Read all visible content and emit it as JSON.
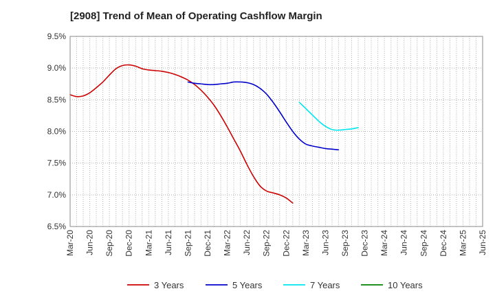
{
  "chart_data": {
    "type": "line",
    "title": "[2908]  Trend of Mean of Operating Cashflow Margin",
    "xlabel": "",
    "ylabel": "",
    "ylim": [
      6.5,
      9.5
    ],
    "y_ticks": [
      "9.5%",
      "9.0%",
      "8.5%",
      "8.0%",
      "7.5%",
      "7.0%",
      "6.5%"
    ],
    "y_tick_values": [
      9.5,
      9.0,
      8.5,
      8.0,
      7.5,
      7.0,
      6.5
    ],
    "x_tick_labels": [
      "Mar-20",
      "Jun-20",
      "Sep-20",
      "Dec-20",
      "Mar-21",
      "Jun-21",
      "Sep-21",
      "Dec-21",
      "Mar-22",
      "Jun-22",
      "Sep-22",
      "Dec-22",
      "Mar-23",
      "Jun-23",
      "Sep-23",
      "Dec-23",
      "Mar-24",
      "Jun-24",
      "Sep-24",
      "Dec-24",
      "Mar-25",
      "Jun-25"
    ],
    "grid": true,
    "legend_position": "bottom",
    "series": [
      {
        "name": "3 Years",
        "color": "#cc0000",
        "start_index": 0,
        "values": [
          8.58,
          8.55,
          8.56,
          8.61,
          8.69,
          8.78,
          8.89,
          8.99,
          9.04,
          9.05,
          9.03,
          8.99,
          8.97,
          8.96,
          8.95,
          8.93,
          8.9,
          8.86,
          8.81,
          8.74,
          8.65,
          8.54,
          8.41,
          8.25,
          8.07,
          7.88,
          7.69,
          7.48,
          7.29,
          7.14,
          7.06,
          7.03,
          7.0,
          6.95,
          6.87
        ]
      },
      {
        "name": "5 Years",
        "color": "#0000cc",
        "start_index": 18,
        "values": [
          8.78,
          8.76,
          8.75,
          8.74,
          8.74,
          8.75,
          8.76,
          8.78,
          8.78,
          8.77,
          8.74,
          8.68,
          8.59,
          8.46,
          8.31,
          8.15,
          8.0,
          7.88,
          7.8,
          7.77,
          7.75,
          7.73,
          7.72,
          7.71
        ]
      },
      {
        "name": "7 Years",
        "color": "#00e5ee",
        "start_index": 35,
        "values": [
          8.46,
          8.36,
          8.26,
          8.16,
          8.08,
          8.03,
          8.02,
          8.03,
          8.04,
          8.06
        ]
      },
      {
        "name": "10 Years",
        "color": "#008000",
        "start_index": 0,
        "values": []
      }
    ]
  }
}
